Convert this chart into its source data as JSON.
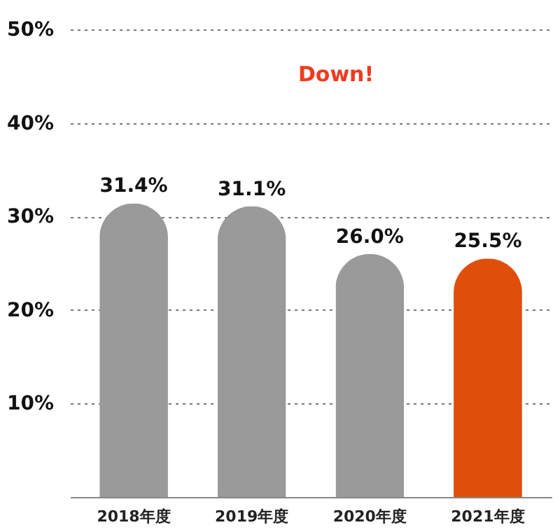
{
  "chart_data": {
    "type": "bar",
    "categories": [
      "2018年度",
      "2019年度",
      "2020年度",
      "2021年度"
    ],
    "values": [
      31.4,
      31.1,
      26.0,
      25.5
    ],
    "colors": [
      "#9a9a9a",
      "#9a9a9a",
      "#9a9a9a",
      "#e04e0b"
    ],
    "value_labels": [
      "31.4%",
      "31.1%",
      "26.0%",
      "25.5%"
    ],
    "ylim": [
      0,
      50
    ],
    "yticks": [
      {
        "value": 0,
        "label": null
      },
      {
        "value": 10,
        "label": "10%"
      },
      {
        "value": 20,
        "label": "20%"
      },
      {
        "value": 30,
        "label": "30%"
      },
      {
        "value": 40,
        "label": "40%"
      },
      {
        "value": 50,
        "label": "50%"
      }
    ],
    "grid": "y",
    "annotations": [
      "Down!"
    ]
  }
}
